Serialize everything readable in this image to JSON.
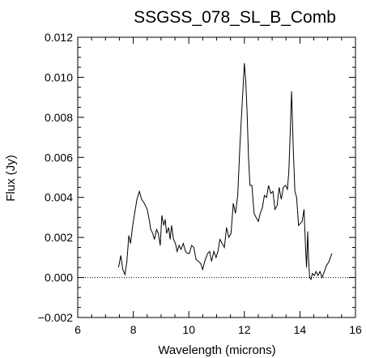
{
  "chart_data": {
    "type": "line",
    "title": "SSGSS_078_SL_B_Comb",
    "xlabel": "Wavelength (microns)",
    "ylabel": "Flux (Jy)",
    "xlim": [
      6,
      16
    ],
    "ylim": [
      -0.002,
      0.012
    ],
    "x_ticks": [
      "6",
      "8",
      "10",
      "12",
      "14",
      "16"
    ],
    "y_ticks": [
      "−0.002",
      "0.000",
      "0.002",
      "0.004",
      "0.006",
      "0.008",
      "0.010",
      "0.012"
    ],
    "x_tick_values": [
      6,
      8,
      10,
      12,
      14,
      16
    ],
    "y_tick_values": [
      -0.002,
      0.0,
      0.002,
      0.004,
      0.006,
      0.008,
      0.01,
      0.012
    ],
    "grid": false,
    "zero_line": "dotted",
    "series": [
      {
        "x": [
          7.47,
          7.55,
          7.62,
          7.7,
          7.77,
          7.84,
          7.9,
          7.98,
          8.05,
          8.13,
          8.22,
          8.3,
          8.4,
          8.5,
          8.57,
          8.63,
          8.7,
          8.76,
          8.84,
          8.9,
          8.97,
          9.03,
          9.1,
          9.15,
          9.2,
          9.27,
          9.33,
          9.38,
          9.45,
          9.52,
          9.58,
          9.65,
          9.72,
          9.8,
          9.88,
          9.95,
          10.02,
          10.1,
          10.18,
          10.26,
          10.34,
          10.43,
          10.5,
          10.57,
          10.62,
          10.68,
          10.75,
          10.82,
          10.9,
          10.98,
          11.05,
          11.12,
          11.2,
          11.28,
          11.36,
          11.44,
          11.52,
          11.6,
          11.68,
          11.76,
          11.84,
          11.92,
          12.0,
          12.05,
          12.1,
          12.15,
          12.2,
          12.27,
          12.35,
          12.42,
          12.5,
          12.57,
          12.65,
          12.72,
          12.8,
          12.87,
          12.95,
          13.03,
          13.1,
          13.18,
          13.25,
          13.33,
          13.4,
          13.48,
          13.55,
          13.6,
          13.65,
          13.7,
          13.76,
          13.82,
          13.88,
          13.95,
          14.02,
          14.08,
          14.15,
          14.2,
          14.24,
          14.28,
          14.31,
          14.35,
          14.4,
          14.45,
          14.52,
          14.58,
          14.65,
          14.72,
          14.8,
          14.88,
          14.96,
          15.05,
          15.15
        ],
        "y": [
          0.0005,
          0.0011,
          0.0004,
          0.00015,
          0.0008,
          0.0021,
          0.0017,
          0.0026,
          0.0032,
          0.0039,
          0.0043,
          0.0039,
          0.0037,
          0.0034,
          0.0029,
          0.0024,
          0.0022,
          0.0019,
          0.0024,
          0.0022,
          0.0016,
          0.0031,
          0.0026,
          0.0029,
          0.0022,
          0.0025,
          0.0019,
          0.0026,
          0.0019,
          0.0017,
          0.0013,
          0.0016,
          0.0014,
          0.0017,
          0.0013,
          0.0012,
          0.0012,
          0.0016,
          0.0015,
          0.0009,
          0.0008,
          0.0007,
          0.0004,
          0.0008,
          0.001,
          0.0012,
          0.0013,
          0.0008,
          0.0013,
          0.001,
          0.0013,
          0.0019,
          0.0017,
          0.0015,
          0.0025,
          0.002,
          0.0022,
          0.0037,
          0.0032,
          0.0041,
          0.0066,
          0.0087,
          0.0107,
          0.0098,
          0.0082,
          0.006,
          0.0046,
          0.0046,
          0.0032,
          0.003,
          0.0028,
          0.0032,
          0.0035,
          0.0041,
          0.004,
          0.0046,
          0.0042,
          0.0043,
          0.0034,
          0.0036,
          0.0045,
          0.0039,
          0.0045,
          0.0046,
          0.0044,
          0.0053,
          0.0072,
          0.0093,
          0.0064,
          0.0043,
          0.004,
          0.0026,
          0.0027,
          0.0028,
          0.0034,
          0.0015,
          0.0005,
          0.0023,
          0.001,
          0.0,
          -0.0001,
          0.0002,
          0.0001,
          0.0003,
          0.0001,
          0.0003,
          0.0,
          0.0003,
          0.0006,
          0.0008,
          0.0012
        ]
      }
    ]
  }
}
